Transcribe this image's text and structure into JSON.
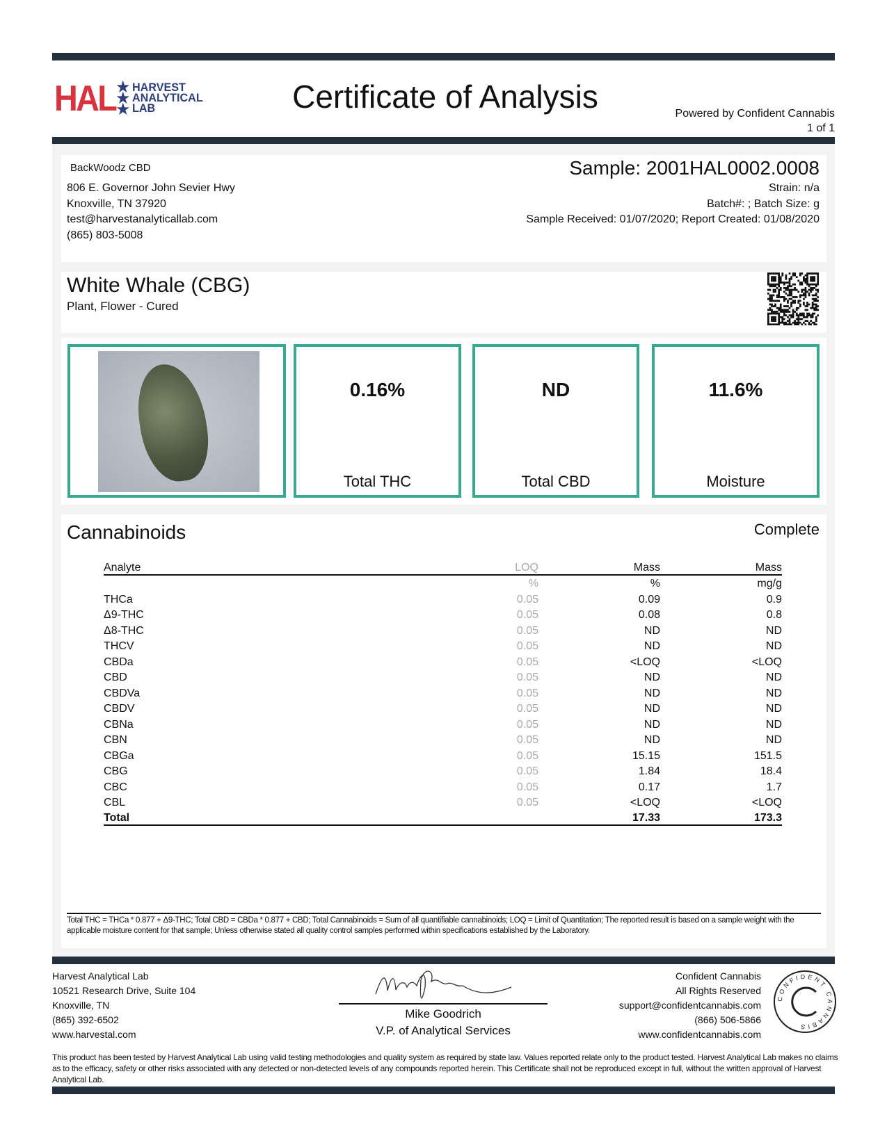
{
  "header": {
    "logo_text": "HAL",
    "logo_lines": [
      "HARVEST",
      "ANALYTICAL",
      "LAB"
    ],
    "title": "Certificate of Analysis",
    "powered_by": "Powered by Confident Cannabis",
    "page": "1 of 1"
  },
  "client": {
    "name": "BackWoodz CBD",
    "address1": "806 E. Governor John Sevier Hwy",
    "address2": "Knoxville, TN 37920",
    "email": "test@harvestanalyticallab.com",
    "phone": "(865) 803-5008"
  },
  "sample": {
    "id": "Sample: 2001HAL0002.0008",
    "strain": "Strain: n/a",
    "batch": "Batch#: ; Batch Size:  g",
    "dates": "Sample Received: 01/07/2020; Report Created: 01/08/2020"
  },
  "product": {
    "name": "White Whale (CBG)",
    "type": "Plant, Flower - Cured"
  },
  "summary": [
    {
      "value": "0.16%",
      "label": "Total THC"
    },
    {
      "value": "ND",
      "label": "Total CBD"
    },
    {
      "value": "11.6%",
      "label": "Moisture"
    }
  ],
  "cannabinoids": {
    "title": "Cannabinoids",
    "status": "Complete",
    "headers": [
      "Analyte",
      "LOQ",
      "Mass",
      "Mass"
    ],
    "units": [
      "",
      "%",
      "%",
      "mg/g"
    ],
    "rows": [
      [
        "THCa",
        "0.05",
        "0.09",
        "0.9"
      ],
      [
        "Δ9-THC",
        "0.05",
        "0.08",
        "0.8"
      ],
      [
        "Δ8-THC",
        "0.05",
        "ND",
        "ND"
      ],
      [
        "THCV",
        "0.05",
        "ND",
        "ND"
      ],
      [
        "CBDa",
        "0.05",
        "<LOQ",
        "<LOQ"
      ],
      [
        "CBD",
        "0.05",
        "ND",
        "ND"
      ],
      [
        "CBDVa",
        "0.05",
        "ND",
        "ND"
      ],
      [
        "CBDV",
        "0.05",
        "ND",
        "ND"
      ],
      [
        "CBNa",
        "0.05",
        "ND",
        "ND"
      ],
      [
        "CBN",
        "0.05",
        "ND",
        "ND"
      ],
      [
        "CBGa",
        "0.05",
        "15.15",
        "151.5"
      ],
      [
        "CBG",
        "0.05",
        "1.84",
        "18.4"
      ],
      [
        "CBC",
        "0.05",
        "0.17",
        "1.7"
      ],
      [
        "CBL",
        "0.05",
        "<LOQ",
        "<LOQ"
      ]
    ],
    "total": [
      "Total",
      "",
      "17.33",
      "173.3"
    ],
    "note": "Total THC = THCa * 0.877 + Δ9-THC; Total CBD = CBDa * 0.877 + CBD; Total Cannabinoids = Sum of all quantifiable cannabinoids; LOQ = Limit of Quantitation; The reported result is based on a sample weight with the applicable moisture content for that sample; Unless otherwise stated all quality control samples performed within specifications established by the Laboratory."
  },
  "footer": {
    "lab": [
      "Harvest Analytical Lab",
      "10521 Research Drive, Suite 104",
      "Knoxville, TN",
      "(865) 392-6502",
      "www.harvestal.com"
    ],
    "signer_name": "Mike Goodrich",
    "signer_title": "V.P. of Analytical Services",
    "cc": [
      "Confident Cannabis",
      "All Rights Reserved",
      "support@confidentcannabis.com",
      "(866) 506-5866",
      "www.confidentcannabis.com"
    ],
    "cc_logo_text": "CONFIDENT CANNABIS",
    "disclaimer": "This product has been tested by Harvest Analytical Lab using valid testing methodologies and quality system as required by state law. Values reported relate only to the product tested. Harvest Analytical Lab makes no claims as to the efficacy, safety or other risks associated with any detected or non-detected levels of any compounds reported herein. This Certificate shall not be reproduced except in full, without the written approval of Harvest Analytical Lab."
  },
  "colors": {
    "bar": "#232f3c",
    "accent": "#3aa891",
    "logo_red": "#d8343f",
    "logo_blue": "#2d3f7a"
  }
}
